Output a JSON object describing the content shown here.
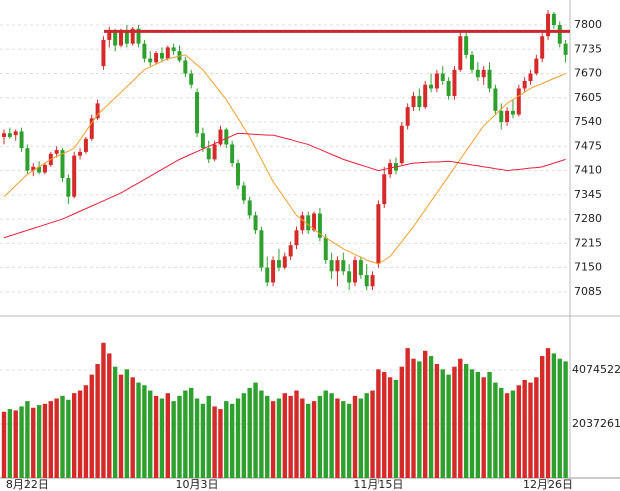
{
  "chart_data": {
    "type": "candlestick",
    "categories": [
      null,
      null,
      null,
      null,
      "8月22日",
      null,
      null,
      null,
      null,
      null,
      null,
      null,
      null,
      null,
      null,
      null,
      null,
      null,
      null,
      null,
      null,
      null,
      null,
      null,
      null,
      null,
      null,
      null,
      null,
      null,
      null,
      null,
      null,
      "10月3日",
      null,
      null,
      null,
      null,
      null,
      null,
      null,
      null,
      null,
      null,
      null,
      null,
      null,
      null,
      null,
      null,
      null,
      null,
      null,
      null,
      null,
      null,
      null,
      null,
      null,
      null,
      null,
      null,
      null,
      null,
      "11月15日",
      null,
      null,
      null,
      null,
      null,
      null,
      null,
      null,
      null,
      null,
      null,
      null,
      null,
      null,
      null,
      null,
      null,
      null,
      null,
      null,
      null,
      null,
      null,
      null,
      null,
      null,
      null,
      null,
      "12月26日",
      null,
      null,
      null
    ],
    "open": [
      7500,
      7510,
      7505,
      7515,
      7470,
      7410,
      7420,
      7405,
      7425,
      7455,
      7465,
      7390,
      7340,
      7450,
      7460,
      7495,
      7550,
      7690,
      7760,
      7780,
      7745,
      7785,
      7750,
      7790,
      7750,
      7710,
      7700,
      7725,
      7710,
      7740,
      7730,
      7705,
      7670,
      7620,
      7510,
      7470,
      7440,
      7480,
      7520,
      7480,
      7430,
      7370,
      7330,
      7290,
      7250,
      7150,
      7110,
      7170,
      7150,
      7180,
      7210,
      7250,
      7290,
      7250,
      7295,
      7230,
      7170,
      7140,
      7170,
      7140,
      7110,
      7170,
      7130,
      7100,
      7160,
      7320,
      7400,
      7430,
      7430,
      7530,
      7580,
      7610,
      7580,
      7640,
      7630,
      7670,
      7650,
      7610,
      7680,
      7770,
      7720,
      7680,
      7660,
      7680,
      7630,
      7570,
      7540,
      7570,
      7560,
      7630,
      7650,
      7670,
      7710,
      7770,
      7830,
      7800,
      7750
    ],
    "high": [
      7520,
      7525,
      7520,
      7525,
      7480,
      7430,
      7435,
      7430,
      7460,
      7475,
      7470,
      7400,
      7460,
      7470,
      7500,
      7560,
      7600,
      7770,
      7795,
      7790,
      7790,
      7800,
      7795,
      7800,
      7760,
      7730,
      7730,
      7740,
      7745,
      7750,
      7745,
      7715,
      7680,
      7630,
      7525,
      7490,
      7490,
      7530,
      7525,
      7490,
      7440,
      7380,
      7340,
      7300,
      7260,
      7180,
      7180,
      7200,
      7190,
      7220,
      7260,
      7300,
      7300,
      7300,
      7310,
      7240,
      7190,
      7180,
      7190,
      7160,
      7180,
      7180,
      7160,
      7140,
      7330,
      7420,
      7440,
      7445,
      7540,
      7590,
      7620,
      7630,
      7650,
      7670,
      7680,
      7690,
      7660,
      7690,
      7780,
      7780,
      7730,
      7700,
      7690,
      7700,
      7640,
      7590,
      7580,
      7600,
      7640,
      7660,
      7680,
      7720,
      7780,
      7840,
      7835,
      7810,
      7760
    ],
    "low": [
      7480,
      7495,
      7490,
      7460,
      7400,
      7395,
      7400,
      7400,
      7420,
      7445,
      7380,
      7320,
      7335,
      7440,
      7455,
      7490,
      7545,
      7680,
      7740,
      7730,
      7740,
      7740,
      7745,
      7740,
      7700,
      7690,
      7695,
      7700,
      7705,
      7720,
      7700,
      7660,
      7630,
      7500,
      7460,
      7430,
      7435,
      7475,
      7470,
      7420,
      7360,
      7320,
      7280,
      7240,
      7140,
      7100,
      7100,
      7140,
      7145,
      7170,
      7200,
      7240,
      7240,
      7245,
      7220,
      7160,
      7120,
      7100,
      7130,
      7090,
      7100,
      7120,
      7090,
      7090,
      7150,
      7310,
      7390,
      7400,
      7425,
      7520,
      7570,
      7570,
      7575,
      7620,
      7620,
      7640,
      7600,
      7600,
      7675,
      7710,
      7670,
      7650,
      7640,
      7620,
      7560,
      7520,
      7530,
      7550,
      7555,
      7620,
      7640,
      7665,
      7700,
      7760,
      7790,
      7740,
      7700
    ],
    "close": [
      7510,
      7500,
      7515,
      7470,
      7410,
      7420,
      7405,
      7425,
      7455,
      7465,
      7390,
      7340,
      7450,
      7460,
      7495,
      7550,
      7590,
      7760,
      7780,
      7745,
      7785,
      7750,
      7790,
      7750,
      7710,
      7700,
      7725,
      7710,
      7740,
      7730,
      7705,
      7670,
      7640,
      7510,
      7470,
      7440,
      7480,
      7520,
      7480,
      7430,
      7370,
      7330,
      7290,
      7250,
      7150,
      7110,
      7170,
      7150,
      7180,
      7210,
      7250,
      7290,
      7250,
      7295,
      7230,
      7170,
      7140,
      7170,
      7140,
      7110,
      7170,
      7130,
      7100,
      7130,
      7320,
      7400,
      7430,
      7410,
      7530,
      7580,
      7610,
      7580,
      7640,
      7630,
      7670,
      7650,
      7610,
      7680,
      7770,
      7720,
      7680,
      7660,
      7680,
      7630,
      7570,
      7540,
      7570,
      7560,
      7630,
      7650,
      7670,
      7710,
      7770,
      7830,
      7800,
      7750,
      7720
    ],
    "volume": [
      2500000,
      2600000,
      2550000,
      2700000,
      2900000,
      2650000,
      2750000,
      2800000,
      2900000,
      3000000,
      3100000,
      2950000,
      3200000,
      3300000,
      3500000,
      3900000,
      4300000,
      5100000,
      4700000,
      4200000,
      3900000,
      4100000,
      3800000,
      3600000,
      3500000,
      3300000,
      3100000,
      3000000,
      3200000,
      2900000,
      3100000,
      3300000,
      3400000,
      3000000,
      2800000,
      3100000,
      2700000,
      2600000,
      2900000,
      2800000,
      3000000,
      3200000,
      3400000,
      3600000,
      3300000,
      3100000,
      2900000,
      3000000,
      3200000,
      3100000,
      3300000,
      3000000,
      2800000,
      2900000,
      3100000,
      3300000,
      3200000,
      3000000,
      2900000,
      2800000,
      3100000,
      3000000,
      3200000,
      3300000,
      4100000,
      4000000,
      3800000,
      3700000,
      4200000,
      4900000,
      4500000,
      4400000,
      4800000,
      4600000,
      4300000,
      4100000,
      3900000,
      4200000,
      4500000,
      4300000,
      4100000,
      4000000,
      3800000,
      4000000,
      3600000,
      3400000,
      3200000,
      3300000,
      3500000,
      3700000,
      3600000,
      3800000,
      4600000,
      4900000,
      4700000,
      4500000,
      4400000
    ],
    "lines": [
      {
        "color": "#f0a030",
        "values": [
          7340,
          7355,
          7370,
          7385,
          7400,
          7410,
          7420,
          7430,
          7440,
          7448,
          7455,
          7462,
          7470,
          7492,
          7515,
          7538,
          7560,
          7575,
          7590,
          7605,
          7620,
          7635,
          7650,
          7665,
          7680,
          7688,
          7695,
          7703,
          7710,
          7713,
          7717,
          7720,
          7707,
          7693,
          7680,
          7660,
          7640,
          7620,
          7600,
          7575,
          7550,
          7525,
          7500,
          7470,
          7440,
          7410,
          7380,
          7358,
          7335,
          7313,
          7290,
          7278,
          7265,
          7253,
          7240,
          7230,
          7220,
          7210,
          7200,
          7193,
          7185,
          7178,
          7170,
          7165,
          7160,
          7170,
          7180,
          7200,
          7220,
          7240,
          7260,
          7283,
          7305,
          7328,
          7350,
          7373,
          7395,
          7418,
          7440,
          7463,
          7485,
          7508,
          7530,
          7545,
          7560,
          7575,
          7590,
          7600,
          7610,
          7620,
          7630,
          7637,
          7643,
          7650,
          7657,
          7663,
          7670
        ]
      },
      {
        "color": "#e8203a",
        "values": [
          7230,
          7235,
          7240,
          7245,
          7250,
          7255,
          7260,
          7265,
          7270,
          7275,
          7280,
          7287,
          7294,
          7301,
          7308,
          7315,
          7322,
          7329,
          7336,
          7343,
          7350,
          7359,
          7368,
          7377,
          7386,
          7395,
          7404,
          7413,
          7422,
          7431,
          7440,
          7447,
          7454,
          7461,
          7468,
          7475,
          7482,
          7489,
          7496,
          7503,
          7510,
          7509,
          7508,
          7507,
          7506,
          7505,
          7505,
          7501,
          7497,
          7493,
          7488,
          7484,
          7480,
          7473,
          7467,
          7460,
          7453,
          7447,
          7440,
          7435,
          7430,
          7425,
          7420,
          7415,
          7410,
          7413,
          7417,
          7420,
          7423,
          7427,
          7430,
          7431,
          7432,
          7433,
          7433,
          7434,
          7435,
          7433,
          7430,
          7428,
          7425,
          7423,
          7420,
          7418,
          7415,
          7413,
          7410,
          7412,
          7413,
          7415,
          7417,
          7418,
          7420,
          7425,
          7430,
          7435,
          7440
        ]
      }
    ],
    "hline": {
      "value": 7783,
      "color": "#c8282e"
    },
    "up_color": "#d42a2a",
    "down_color": "#2ea02e",
    "ylim": [
      7023,
      7867
    ],
    "yticks": [
      7085,
      7150,
      7215,
      7280,
      7345,
      7410,
      7475,
      7540,
      7605,
      7670,
      7735,
      7800
    ],
    "y2lim": [
      0,
      6036000
    ],
    "y2ticks": [
      2037261,
      4074522
    ],
    "grid": true
  }
}
